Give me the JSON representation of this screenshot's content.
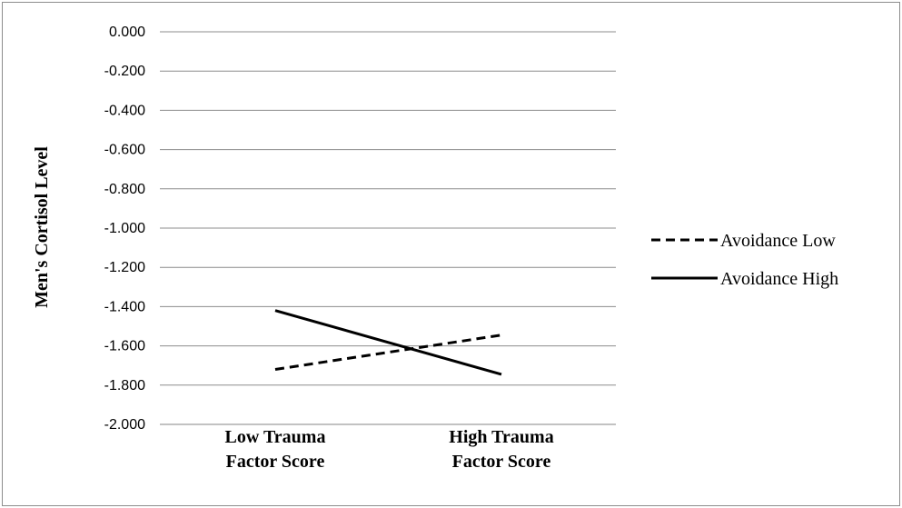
{
  "chart_data": {
    "type": "line",
    "title": "",
    "xlabel": "",
    "ylabel": "Men's Cortisol Level",
    "categories": [
      [
        "Low Trauma",
        "Factor Score"
      ],
      [
        "High Trauma",
        "Factor Score"
      ]
    ],
    "y_ticks": [
      "0.000",
      "-0.200",
      "-0.400",
      "-0.600",
      "-0.800",
      "-1.000",
      "-1.200",
      "-1.400",
      "-1.600",
      "-1.800",
      "-2.000"
    ],
    "ylim": [
      -2.0,
      0.0
    ],
    "grid": true,
    "legend_position": "right",
    "series": [
      {
        "name": "Avoidance Low",
        "values": [
          -1.72,
          -1.545
        ],
        "line_style": "dashed",
        "color": "#000000"
      },
      {
        "name": "Avoidance High",
        "values": [
          -1.42,
          -1.745
        ],
        "line_style": "solid",
        "color": "#000000"
      }
    ]
  }
}
